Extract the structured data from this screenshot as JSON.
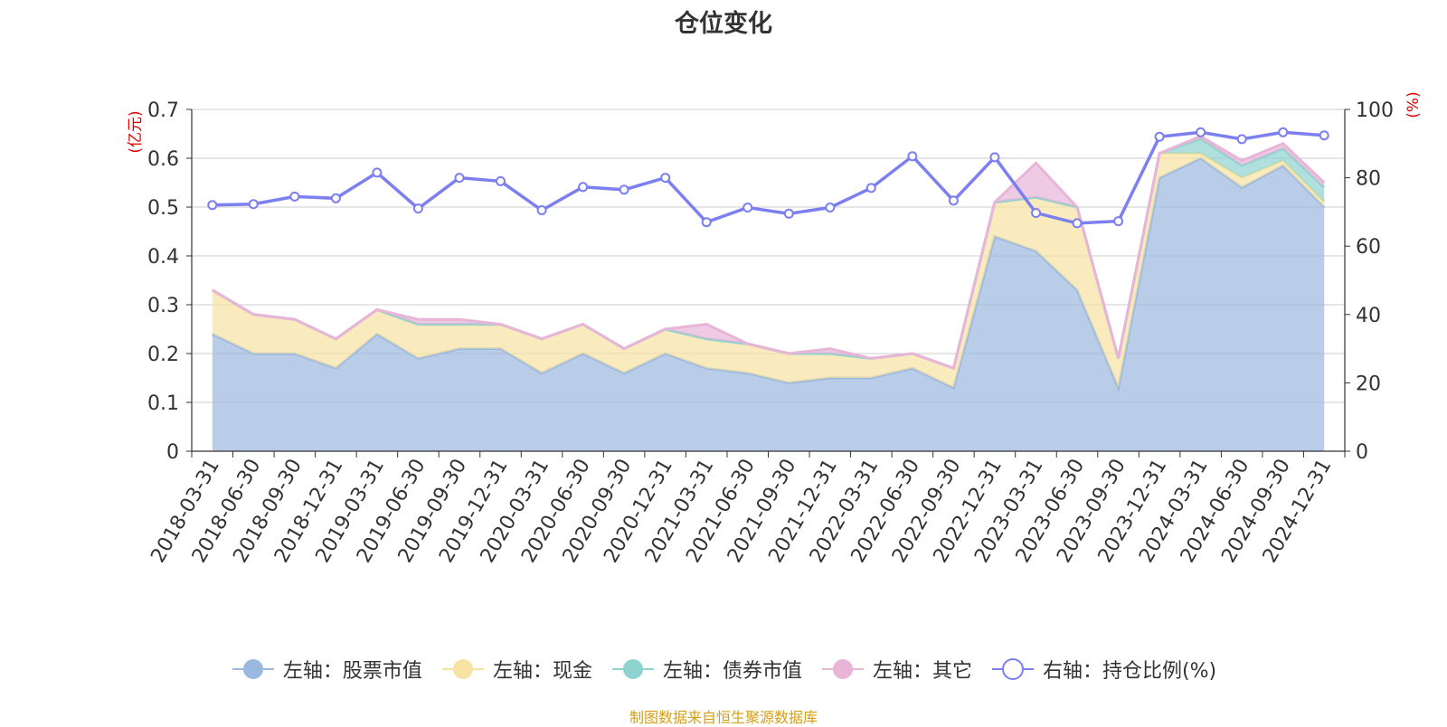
{
  "chart_data": {
    "type": "area",
    "title": "仓位变化",
    "left_axis_unit": "(亿元)",
    "right_axis_unit": "(%)",
    "categories": [
      "2018-03-31",
      "2018-06-30",
      "2018-09-30",
      "2018-12-31",
      "2019-03-31",
      "2019-06-30",
      "2019-09-30",
      "2019-12-31",
      "2020-03-31",
      "2020-06-30",
      "2020-09-30",
      "2020-12-31",
      "2021-03-31",
      "2021-06-30",
      "2021-09-30",
      "2021-12-31",
      "2022-03-31",
      "2022-06-30",
      "2022-09-30",
      "2022-12-31",
      "2023-03-31",
      "2023-06-30",
      "2023-09-30",
      "2023-12-31",
      "2024-03-31",
      "2024-06-30",
      "2024-09-30",
      "2024-12-31"
    ],
    "left_ylim": [
      0,
      0.7
    ],
    "left_ticks": [
      "0",
      "0.1",
      "0.2",
      "0.3",
      "0.4",
      "0.5",
      "0.6",
      "0.7"
    ],
    "right_ylim": [
      0,
      100
    ],
    "right_ticks": [
      "0",
      "20",
      "40",
      "60",
      "80",
      "100"
    ],
    "grid": true,
    "legend_position": "bottom",
    "series": [
      {
        "name": "左轴：股票市值",
        "axis": "left",
        "kind": "stacked-area",
        "color": "#9bb8e0",
        "values": [
          0.24,
          0.2,
          0.2,
          0.17,
          0.24,
          0.19,
          0.21,
          0.21,
          0.16,
          0.2,
          0.16,
          0.2,
          0.17,
          0.16,
          0.14,
          0.15,
          0.15,
          0.17,
          0.13,
          0.44,
          0.41,
          0.33,
          0.13,
          0.56,
          0.6,
          0.54,
          0.585,
          0.5
        ]
      },
      {
        "name": "左轴：现金",
        "axis": "left",
        "kind": "stacked-area",
        "color": "#f7e3a1",
        "values": [
          0.09,
          0.08,
          0.07,
          0.06,
          0.05,
          0.07,
          0.05,
          0.05,
          0.07,
          0.06,
          0.05,
          0.05,
          0.06,
          0.06,
          0.06,
          0.05,
          0.04,
          0.03,
          0.04,
          0.07,
          0.11,
          0.17,
          0.06,
          0.05,
          0.01,
          0.02,
          0.01,
          0.01
        ]
      },
      {
        "name": "左轴：债券市值",
        "axis": "left",
        "kind": "stacked-area",
        "color": "#8fd3d0",
        "values": [
          0,
          0,
          0,
          0,
          0,
          0,
          0,
          0,
          0,
          0,
          0,
          0,
          0,
          0,
          0,
          0,
          0,
          0,
          0,
          0,
          0,
          0,
          0,
          0,
          0.03,
          0.025,
          0.025,
          0.03
        ]
      },
      {
        "name": "左轴：其它",
        "axis": "left",
        "kind": "stacked-area",
        "color": "#e8b4d8",
        "values": [
          0,
          0,
          0,
          0,
          0,
          0.01,
          0.01,
          0,
          0,
          0,
          0,
          0,
          0.03,
          0,
          0,
          0.01,
          0,
          0,
          0,
          0,
          0.07,
          0,
          0,
          0,
          0.005,
          0.01,
          0.01,
          0.01
        ]
      },
      {
        "name": "右轴：持仓比例(%)",
        "axis": "right",
        "kind": "line",
        "color": "#7b7ff0",
        "values": [
          72,
          72.3,
          74.5,
          74,
          81.5,
          71,
          80,
          79,
          70.5,
          77.3,
          76.5,
          80,
          67,
          71.3,
          69.5,
          71.3,
          77,
          86.3,
          73.3,
          86,
          69.7,
          66.7,
          67.3,
          92,
          93.3,
          91.3,
          93.3,
          92.4
        ]
      }
    ]
  },
  "legend": {
    "items": [
      {
        "label": "左轴：股票市值",
        "color": "#9bb8e0",
        "style": "filled"
      },
      {
        "label": "左轴：现金",
        "color": "#f7e3a1",
        "style": "filled"
      },
      {
        "label": "左轴：债券市值",
        "color": "#8fd3d0",
        "style": "filled"
      },
      {
        "label": "左轴：其它",
        "color": "#e8b4d8",
        "style": "filled"
      },
      {
        "label": "右轴：持仓比例(%)",
        "color": "#7b7ff0",
        "style": "hollow"
      }
    ]
  },
  "source_note": "制图数据来自恒生聚源数据库"
}
